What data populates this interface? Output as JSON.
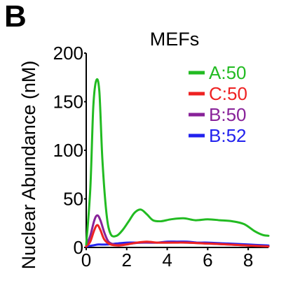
{
  "panel_label": "B",
  "chart_data": {
    "type": "line",
    "title": "MEFs",
    "xlabel": "",
    "ylabel": "Nuclear Abundance (nM)",
    "xlim": [
      0,
      9
    ],
    "ylim": [
      0,
      200
    ],
    "x_ticks": [
      "0",
      "2",
      "4",
      "6",
      "8"
    ],
    "y_ticks": [
      "0",
      "50",
      "100",
      "150",
      "200"
    ],
    "grid": false,
    "legend_position": "top-right",
    "series": [
      {
        "name": "A:50",
        "color": "#22bb22",
        "x": [
          0,
          0.2,
          0.35,
          0.5,
          0.65,
          0.8,
          1.0,
          1.2,
          1.5,
          1.8,
          2.1,
          2.4,
          2.7,
          3.0,
          3.3,
          3.7,
          4.2,
          4.8,
          5.4,
          6.0,
          6.6,
          7.2,
          7.8,
          8.3,
          8.7,
          9.0
        ],
        "y": [
          3,
          60,
          145,
          172,
          160,
          90,
          35,
          14,
          12,
          18,
          27,
          36,
          39,
          34,
          28,
          27,
          29,
          30,
          28,
          29,
          28,
          27,
          24,
          17,
          13,
          12
        ]
      },
      {
        "name": "C:50",
        "color": "#ee2222",
        "x": [
          0,
          0.2,
          0.4,
          0.55,
          0.7,
          0.9,
          1.2,
          1.6,
          2.0,
          2.5,
          3.0,
          3.5,
          4.0,
          4.5,
          5.0,
          6.0,
          7.0,
          8.0,
          9.0
        ],
        "y": [
          1,
          6,
          18,
          23,
          18,
          8,
          3,
          2,
          3,
          5,
          6,
          5,
          5,
          5,
          5,
          4,
          3,
          2,
          1
        ]
      },
      {
        "name": "B:50",
        "color": "#882299",
        "x": [
          0,
          0.2,
          0.4,
          0.55,
          0.7,
          0.9,
          1.1,
          1.4,
          1.8,
          2.2,
          2.7,
          3.2,
          4.0,
          5.0,
          6.0,
          7.0,
          8.0,
          9.0
        ],
        "y": [
          2,
          12,
          28,
          33,
          28,
          15,
          6,
          3,
          3,
          4,
          5,
          5,
          5,
          5,
          4,
          3,
          2,
          1
        ]
      },
      {
        "name": "B:52",
        "color": "#2222ee",
        "x": [
          0,
          0.3,
          0.6,
          1.0,
          1.5,
          2.0,
          2.5,
          3.0,
          3.5,
          4.0,
          4.5,
          5.0,
          5.5,
          6.0,
          7.0,
          8.0,
          9.0
        ],
        "y": [
          1,
          2,
          3,
          3,
          4,
          5,
          5,
          5,
          5,
          6,
          6,
          6,
          5,
          5,
          4,
          3,
          2
        ]
      }
    ]
  }
}
